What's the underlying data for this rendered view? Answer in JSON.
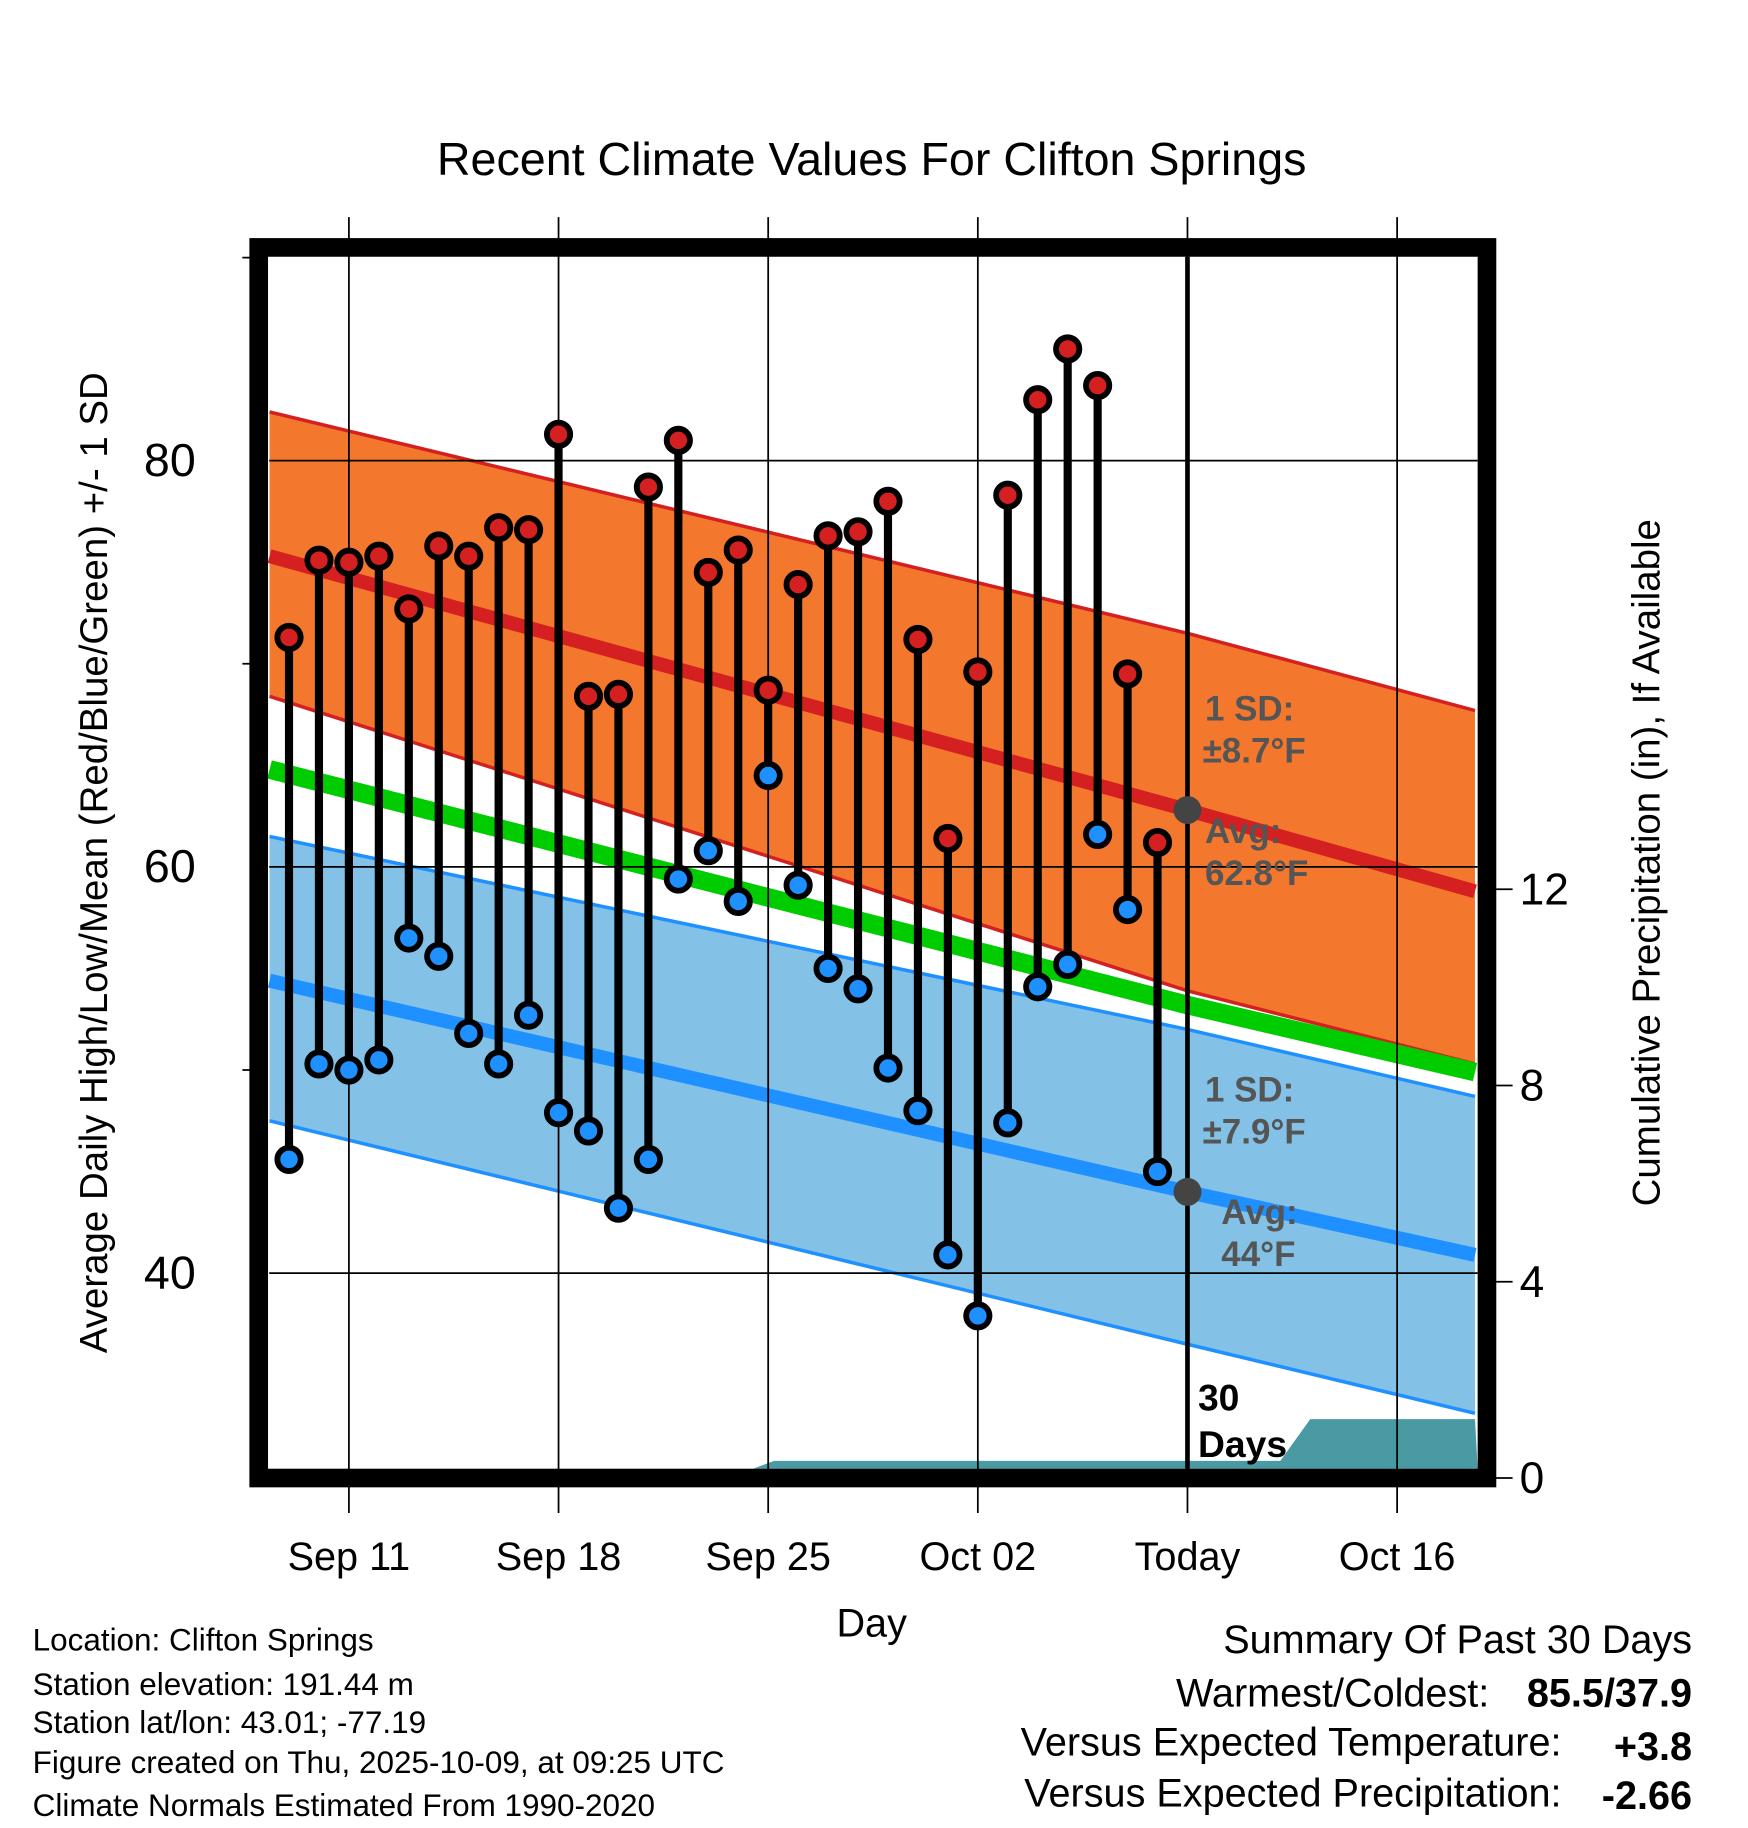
{
  "chart_data": {
    "type": "line",
    "title": "Recent Climate Values For Clifton Springs",
    "xlabel": "Day",
    "ylabel": "Average Daily High/Low/Mean (Red/Blue/Green) +/- 1 SD",
    "y2label": "Cumulative Precipitation (in), If Available",
    "ylim": [
      30.4,
      90
    ],
    "y2lim": [
      0,
      14.3
    ],
    "yticks": [
      "40",
      "60",
      "80"
    ],
    "y2ticks": [
      "0",
      "4",
      "8",
      "12"
    ],
    "xticks": [
      "Sep 11",
      "Sep 18",
      "Sep 25",
      "Oct 02",
      "Today",
      "Oct 16"
    ],
    "grid": true,
    "dates": [
      "Sep 09",
      "Sep 10",
      "Sep 11",
      "Sep 12",
      "Sep 13",
      "Sep 14",
      "Sep 15",
      "Sep 16",
      "Sep 17",
      "Sep 18",
      "Sep 19",
      "Sep 20",
      "Sep 21",
      "Sep 22",
      "Sep 23",
      "Sep 24",
      "Sep 25",
      "Sep 26",
      "Sep 27",
      "Sep 28",
      "Sep 29",
      "Sep 30",
      "Oct 01",
      "Oct 02",
      "Oct 03",
      "Oct 04",
      "Oct 05",
      "Oct 06",
      "Oct 07",
      "Oct 08"
    ],
    "series": [
      {
        "name": "Daily High",
        "color": "#d42020",
        "values": [
          71.3,
          75.1,
          75.0,
          75.3,
          72.7,
          75.8,
          75.3,
          76.7,
          76.6,
          81.3,
          68.4,
          68.5,
          78.7,
          81.0,
          74.5,
          75.6,
          68.7,
          73.9,
          76.3,
          76.5,
          78.0,
          71.2,
          61.4,
          69.6,
          78.3,
          83.0,
          85.5,
          83.7,
          69.5,
          61.2
        ]
      },
      {
        "name": "Daily Low",
        "color": "#1e90ff",
        "values": [
          45.6,
          50.3,
          50.0,
          50.5,
          56.5,
          55.6,
          51.8,
          50.3,
          52.7,
          47.9,
          47.0,
          43.2,
          45.6,
          59.4,
          60.8,
          58.3,
          64.5,
          59.1,
          55.0,
          54.0,
          50.1,
          48.0,
          40.9,
          37.9,
          47.4,
          54.1,
          55.2,
          61.6,
          57.9,
          45.0
        ]
      }
    ],
    "normals": {
      "day_offsets": [
        -0.65,
        30,
        39.6
      ],
      "high_avg": [
        75.3,
        62.8,
        58.8
      ],
      "high_upper": [
        82.4,
        71.5,
        67.7
      ],
      "high_lower": [
        68.4,
        53.9,
        50.3
      ],
      "mean_avg": [
        64.8,
        53.2,
        49.9
      ],
      "low_avg": [
        54.4,
        44.0,
        40.9
      ],
      "low_upper": [
        61.5,
        52.0,
        48.7
      ],
      "low_lower": [
        47.5,
        36.5,
        33.1
      ]
    },
    "precip_cumulative": {
      "day_offsets": [
        13,
        15.5,
        16.2,
        33.1,
        34.1,
        39.6
      ],
      "values": [
        0,
        0.15,
        0.35,
        0.35,
        1.2,
        1.2
      ]
    },
    "colors": {
      "high_band": "#f4772e",
      "high_line": "#d42020",
      "low_band": "#83c1e6",
      "low_line": "#1e90ff",
      "mean_line": "#00cc00",
      "precip": "#4a9aa3"
    },
    "annotations": {
      "high_sd_1": "1 SD:",
      "high_sd_2": "±8.7°F",
      "high_avg_1": "Avg:",
      "high_avg_2": "62.8°F",
      "low_sd_1": "1 SD:",
      "low_sd_2": "±7.9°F",
      "low_avg_1": "Avg:",
      "low_avg_2": "44°F",
      "days_1": "30",
      "days_2": "Days"
    }
  },
  "footer": {
    "location": "Location: Clifton Springs",
    "elevation": "Station elevation: 191.44 m",
    "latlon": "Station lat/lon: 43.01; -77.19",
    "created": "Figure created on Thu, 2025-10-09, at 09:25 UTC",
    "normals": "Climate Normals Estimated From 1990-2020"
  },
  "summary": {
    "title": "Summary Of Past 30 Days",
    "warmest_label": "Warmest/Coldest:",
    "warmest_value": "85.5/37.9",
    "temp_label": "Versus Expected Temperature:",
    "temp_value": "+3.8",
    "temp_color": "#d42020",
    "precip_label": "Versus Expected Precipitation:",
    "precip_value": "-2.66",
    "precip_color": "#a0522d"
  }
}
